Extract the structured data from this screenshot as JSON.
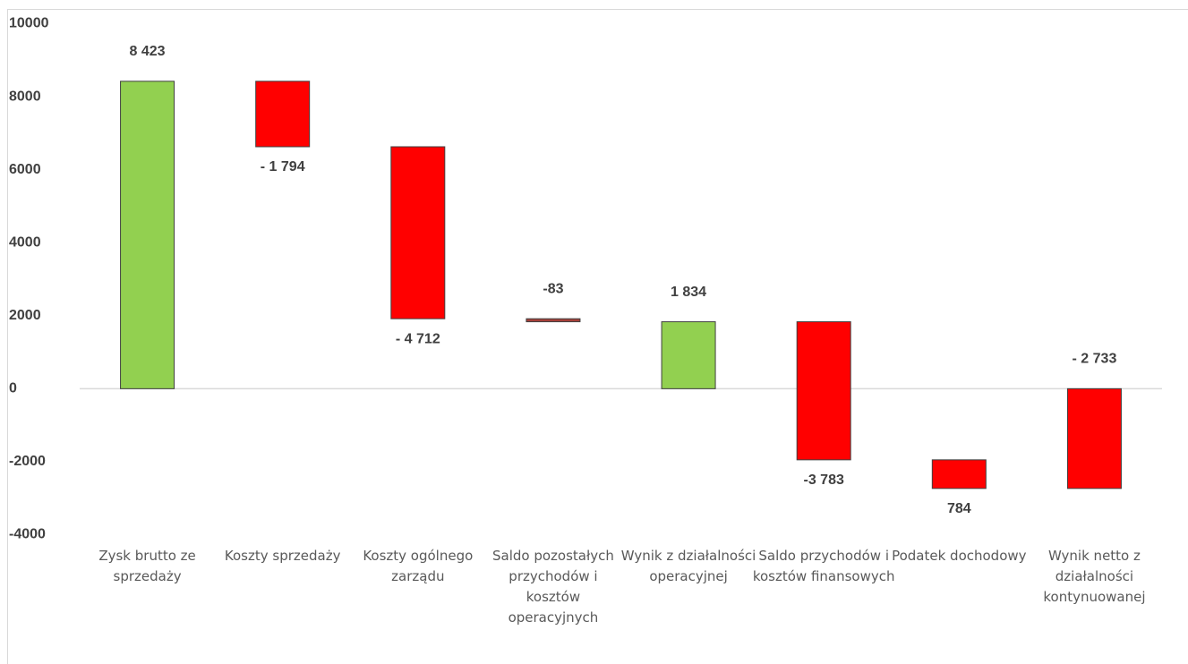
{
  "chart_data": {
    "type": "waterfall",
    "categories": [
      "Zysk brutto ze sprzedaży",
      "Koszty sprzedaży",
      "Koszty ogólnego zarządu",
      "Saldo pozostałych przychodów i kosztów operacyjnych",
      "Wynik z działalności operacyjnej",
      "Saldo przychodów i kosztów finansowych",
      "Podatek dochodowy",
      "Wynik netto z działalności kontynuowanej"
    ],
    "values": [
      8423,
      -1794,
      -4712,
      -83,
      1834,
      -3783,
      -784,
      -2733
    ],
    "value_labels": [
      "8 423",
      "- 1 794",
      "- 4 712",
      "-83",
      "1 834",
      "-3 783",
      "784",
      "- 2 733"
    ],
    "measure": [
      "absolute",
      "relative",
      "relative",
      "relative",
      "absolute",
      "relative",
      "relative",
      "absolute"
    ],
    "colors": [
      "#92d050",
      "#ff0000",
      "#ff0000",
      "#a5403a",
      "#92d050",
      "#ff0000",
      "#ff0000",
      "#ff0000"
    ],
    "ylim": [
      -4000,
      10000
    ],
    "yticks": [
      -4000,
      -2000,
      0,
      2000,
      4000,
      6000,
      8000,
      10000
    ]
  }
}
